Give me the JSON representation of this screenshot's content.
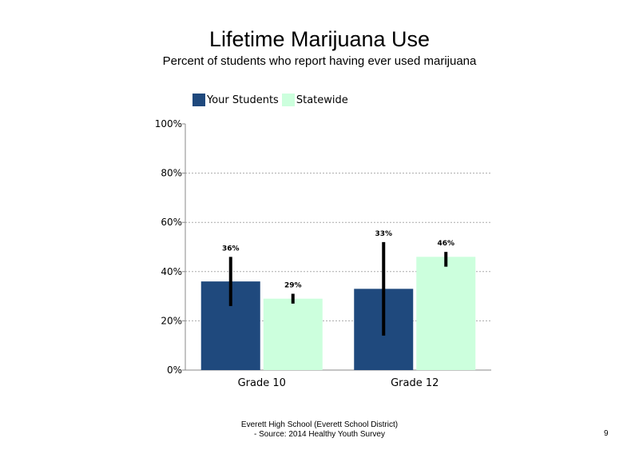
{
  "chart_data": {
    "type": "bar",
    "title": "Lifetime Marijuana Use",
    "subtitle": "Percent of students  who report having ever used marijuana",
    "categories": [
      "Grade 10",
      "Grade 12"
    ],
    "series": [
      {
        "name": "Your Students",
        "color": "#1f497d",
        "values": [
          36,
          33
        ],
        "error_low": [
          26,
          14
        ],
        "error_high": [
          46,
          52
        ],
        "labels": [
          "36%",
          "33%"
        ]
      },
      {
        "name": "Statewide",
        "color": "#ccffdd",
        "values": [
          29,
          46
        ],
        "error_low": [
          27,
          42
        ],
        "error_high": [
          31,
          48
        ],
        "labels": [
          "29%",
          "46%"
        ]
      }
    ],
    "ylim": [
      0,
      100
    ],
    "yticks": [
      0,
      20,
      40,
      60,
      80,
      100
    ],
    "ytick_labels": [
      "0%",
      "20%",
      "40%",
      "60%",
      "80%",
      "100%"
    ],
    "grid": true,
    "legend": "top-left"
  },
  "footer": {
    "line1": "Everett  High  School  (Everett  School District)",
    "line2": "- Source:  2014  Healthy  Youth Survey"
  },
  "page_number": "9"
}
